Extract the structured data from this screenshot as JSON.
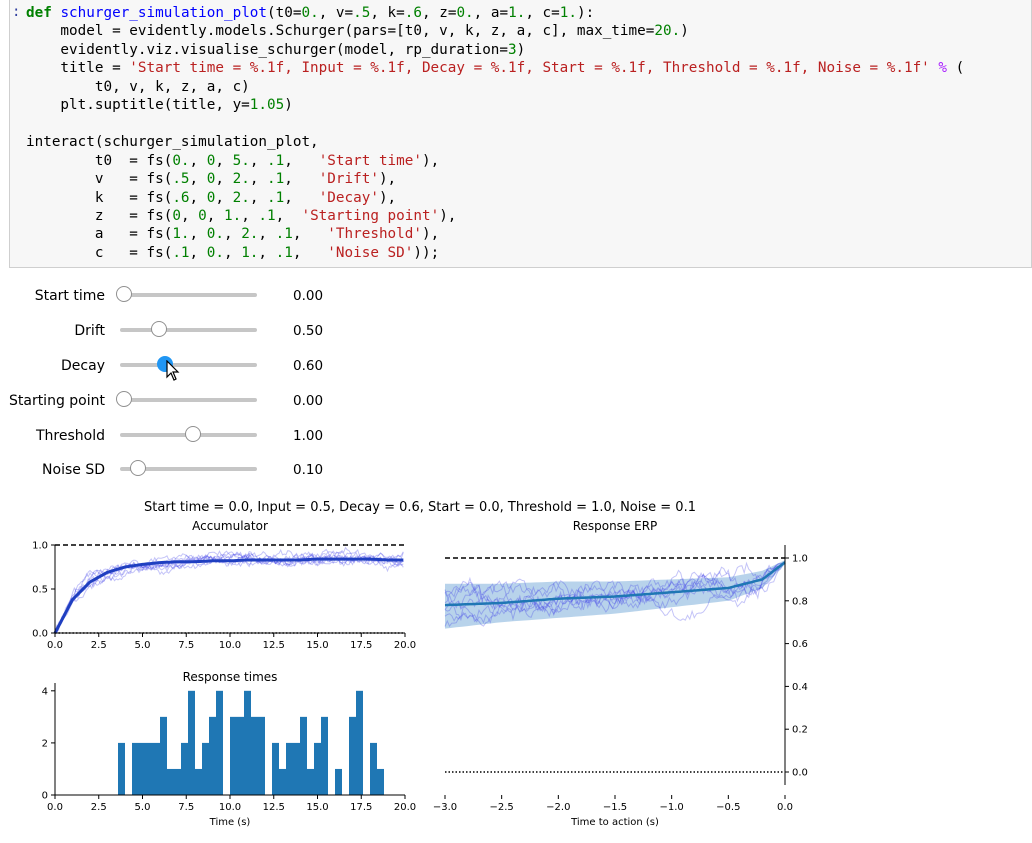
{
  "code_cell": {
    "prompt": ":",
    "lines": [
      [
        [
          "kw",
          "def "
        ],
        [
          "fn",
          "schurger_simulation_plot"
        ],
        [
          "",
          "(t0="
        ],
        [
          "num",
          "0."
        ],
        [
          "",
          ", v="
        ],
        [
          "num",
          ".5"
        ],
        [
          "",
          ", k="
        ],
        [
          "num",
          ".6"
        ],
        [
          "",
          ", z="
        ],
        [
          "num",
          "0."
        ],
        [
          "",
          ", a="
        ],
        [
          "num",
          "1."
        ],
        [
          "",
          ", c="
        ],
        [
          "num",
          "1."
        ],
        [
          "",
          "):"
        ]
      ],
      [
        [
          "",
          "    model = evidently.models.Schurger(pars=[t0, v, k, z, a, c], max_time="
        ],
        [
          "num",
          "20."
        ],
        [
          "",
          ")"
        ]
      ],
      [
        [
          "",
          "    evidently.viz.visualise_schurger(model, rp_duration="
        ],
        [
          "num",
          "3"
        ],
        [
          "",
          ")"
        ]
      ],
      [
        [
          "",
          "    title = "
        ],
        [
          "str",
          "'Start time = %.1f, Input = %.1f, Decay = %.1f, Start = %.1f, Threshold = %.1f, Noise = %.1f'"
        ],
        [
          "",
          " "
        ],
        [
          "op",
          "%"
        ],
        [
          "",
          " ("
        ]
      ],
      [
        [
          "",
          "        t0, v, k, z, a, c)"
        ]
      ],
      [
        [
          "",
          "    plt.suptitle(title, y="
        ],
        [
          "num",
          "1.05"
        ],
        [
          "",
          ")"
        ]
      ],
      [
        [
          "",
          ""
        ]
      ],
      [
        [
          "",
          "interact(schurger_simulation_plot,"
        ]
      ],
      [
        [
          "",
          "        t0  = fs("
        ],
        [
          "num",
          "0."
        ],
        [
          "",
          ", "
        ],
        [
          "num",
          "0"
        ],
        [
          "",
          ", "
        ],
        [
          "num",
          "5."
        ],
        [
          "",
          ", "
        ],
        [
          "num",
          ".1"
        ],
        [
          "",
          ",   "
        ],
        [
          "str",
          "'Start time'"
        ],
        [
          "",
          "),"
        ]
      ],
      [
        [
          "",
          "        v   = fs("
        ],
        [
          "num",
          ".5"
        ],
        [
          "",
          ", "
        ],
        [
          "num",
          "0"
        ],
        [
          "",
          ", "
        ],
        [
          "num",
          "2."
        ],
        [
          "",
          ", "
        ],
        [
          "num",
          ".1"
        ],
        [
          "",
          ",   "
        ],
        [
          "str",
          "'Drift'"
        ],
        [
          "",
          "),"
        ]
      ],
      [
        [
          "",
          "        k   = fs("
        ],
        [
          "num",
          ".6"
        ],
        [
          "",
          ", "
        ],
        [
          "num",
          "0"
        ],
        [
          "",
          ", "
        ],
        [
          "num",
          "2."
        ],
        [
          "",
          ", "
        ],
        [
          "num",
          ".1"
        ],
        [
          "",
          ",   "
        ],
        [
          "str",
          "'Decay'"
        ],
        [
          "",
          "),"
        ]
      ],
      [
        [
          "",
          "        z   = fs("
        ],
        [
          "num",
          "0"
        ],
        [
          "",
          ", "
        ],
        [
          "num",
          "0"
        ],
        [
          "",
          ", "
        ],
        [
          "num",
          "1."
        ],
        [
          "",
          ", "
        ],
        [
          "num",
          ".1"
        ],
        [
          "",
          ",  "
        ],
        [
          "str",
          "'Starting point'"
        ],
        [
          "",
          "),"
        ]
      ],
      [
        [
          "",
          "        a   = fs("
        ],
        [
          "num",
          "1."
        ],
        [
          "",
          ", "
        ],
        [
          "num",
          "0."
        ],
        [
          "",
          ", "
        ],
        [
          "num",
          "2."
        ],
        [
          "",
          ", "
        ],
        [
          "num",
          ".1"
        ],
        [
          "",
          ",   "
        ],
        [
          "str",
          "'Threshold'"
        ],
        [
          "",
          "),"
        ]
      ],
      [
        [
          "",
          "        c   = fs("
        ],
        [
          "num",
          ".1"
        ],
        [
          "",
          ", "
        ],
        [
          "num",
          "0."
        ],
        [
          "",
          ", "
        ],
        [
          "num",
          "1."
        ],
        [
          "",
          ", "
        ],
        [
          "num",
          ".1"
        ],
        [
          "",
          ",   "
        ],
        [
          "str",
          "'Noise SD'"
        ],
        [
          "",
          "));"
        ]
      ]
    ]
  },
  "sliders": [
    {
      "label": "Start time",
      "value": "0.00",
      "position": 0.0,
      "active": false
    },
    {
      "label": "Drift",
      "value": "0.50",
      "position": 0.25,
      "active": false
    },
    {
      "label": "Decay",
      "value": "0.60",
      "position": 0.3,
      "active": true
    },
    {
      "label": "Starting point",
      "value": "0.00",
      "position": 0.0,
      "active": false
    },
    {
      "label": "Threshold",
      "value": "1.00",
      "position": 0.5,
      "active": false
    },
    {
      "label": "Noise SD",
      "value": "0.10",
      "position": 0.1,
      "active": false
    }
  ],
  "figure": {
    "suptitle": "Start time = 0.0, Input = 0.5, Decay = 0.6, Start = 0.0, Threshold = 1.0, Noise = 0.1",
    "colors": {
      "trace": "#3a3ae8",
      "mean": "#1f3fc0",
      "hist": "#1f77b4",
      "erp_mean": "#1f77b4",
      "erp_band": "#a6c8e6"
    }
  },
  "chart_data": [
    {
      "type": "line",
      "title": "Accumulator",
      "xlabel": "",
      "ylabel": "",
      "xlim": [
        0,
        20
      ],
      "ylim": [
        0,
        1
      ],
      "xticks": [
        "0.0",
        "2.5",
        "5.0",
        "7.5",
        "10.0",
        "12.5",
        "15.0",
        "17.5",
        "20.0"
      ],
      "yticks": [
        "0.0",
        "0.5",
        "1.0"
      ],
      "threshold": 1.0,
      "baseline": 0.0,
      "mean": {
        "x": [
          0,
          1,
          2,
          3,
          4,
          5,
          6,
          7,
          8,
          9,
          10,
          11,
          12,
          13,
          14,
          15,
          16,
          17,
          18,
          19,
          20
        ],
        "y": [
          0,
          0.38,
          0.58,
          0.69,
          0.75,
          0.78,
          0.8,
          0.81,
          0.81,
          0.82,
          0.82,
          0.83,
          0.83,
          0.83,
          0.83,
          0.84,
          0.84,
          0.84,
          0.84,
          0.83,
          0.83
        ]
      },
      "n_traces": 8
    },
    {
      "type": "bar",
      "title": "Response times",
      "xlabel": "Time (s)",
      "ylabel": "",
      "xlim": [
        0,
        20
      ],
      "ylim": [
        0,
        4.3
      ],
      "xticks": [
        "0.0",
        "2.5",
        "5.0",
        "7.5",
        "10.0",
        "12.5",
        "15.0",
        "17.5",
        "20.0"
      ],
      "yticks": [
        "0",
        "2",
        "4"
      ],
      "bin_width": 0.4,
      "bins": [
        {
          "x": 3.6,
          "v": 2
        },
        {
          "x": 4.4,
          "v": 2
        },
        {
          "x": 4.8,
          "v": 2
        },
        {
          "x": 5.2,
          "v": 2
        },
        {
          "x": 5.6,
          "v": 2
        },
        {
          "x": 6.0,
          "v": 3
        },
        {
          "x": 6.4,
          "v": 1
        },
        {
          "x": 6.8,
          "v": 1
        },
        {
          "x": 7.2,
          "v": 2
        },
        {
          "x": 7.6,
          "v": 4
        },
        {
          "x": 8.0,
          "v": 1
        },
        {
          "x": 8.4,
          "v": 2
        },
        {
          "x": 8.8,
          "v": 3
        },
        {
          "x": 9.2,
          "v": 4
        },
        {
          "x": 10.0,
          "v": 3
        },
        {
          "x": 10.4,
          "v": 3
        },
        {
          "x": 10.8,
          "v": 4
        },
        {
          "x": 11.2,
          "v": 3
        },
        {
          "x": 11.6,
          "v": 3
        },
        {
          "x": 12.4,
          "v": 2
        },
        {
          "x": 12.8,
          "v": 1
        },
        {
          "x": 13.2,
          "v": 2
        },
        {
          "x": 13.6,
          "v": 2
        },
        {
          "x": 14.0,
          "v": 3
        },
        {
          "x": 14.4,
          "v": 1
        },
        {
          "x": 14.8,
          "v": 2
        },
        {
          "x": 15.2,
          "v": 3
        },
        {
          "x": 16.0,
          "v": 1
        },
        {
          "x": 16.8,
          "v": 3
        },
        {
          "x": 17.2,
          "v": 4
        },
        {
          "x": 18.0,
          "v": 2
        },
        {
          "x": 18.4,
          "v": 1
        }
      ]
    },
    {
      "type": "area",
      "title": "Response ERP",
      "xlabel": "Time to action (s)",
      "ylabel": "",
      "xlim": [
        -3,
        0
      ],
      "ylim": [
        0,
        1
      ],
      "xticks": [
        "-3.0",
        "-2.5",
        "-2.0",
        "-1.5",
        "-1.0",
        "-0.5",
        "0.0"
      ],
      "yticks": [
        "0.0",
        "0.2",
        "0.4",
        "0.6",
        "0.8",
        "1.0"
      ],
      "threshold": 1.0,
      "baseline": 0.0,
      "mean": {
        "x": [
          -3,
          -2.5,
          -2,
          -1.5,
          -1,
          -0.5,
          -0.2,
          0
        ],
        "y": [
          0.78,
          0.79,
          0.81,
          0.82,
          0.84,
          0.86,
          0.9,
          0.98
        ]
      },
      "band_upper": [
        0.88,
        0.88,
        0.89,
        0.89,
        0.9,
        0.91,
        0.94,
        0.99
      ],
      "band_lower": [
        0.67,
        0.7,
        0.72,
        0.74,
        0.77,
        0.8,
        0.86,
        0.97
      ],
      "n_traces": 8
    }
  ]
}
